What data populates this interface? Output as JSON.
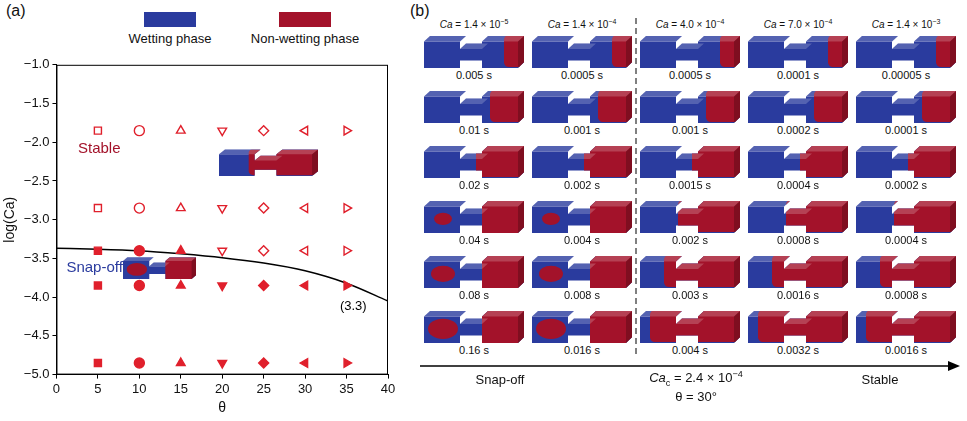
{
  "chart_data": {
    "type": "scatter",
    "panel_label": "(a)",
    "x_label": "θ",
    "y_label": "log(Ca)",
    "xlim": [
      0,
      40
    ],
    "xticks": [
      0,
      5,
      10,
      15,
      20,
      25,
      30,
      35,
      40
    ],
    "ylim": [
      -5,
      -1
    ],
    "yticks": [
      {
        "value": -5,
        "label": "−5.0"
      },
      {
        "value": -4.5,
        "label": "−4.5"
      },
      {
        "value": -4,
        "label": "−4.0"
      },
      {
        "value": -3.5,
        "label": "−3.5"
      },
      {
        "value": -3,
        "label": "−3.0"
      },
      {
        "value": -2.5,
        "label": "−2.5"
      },
      {
        "value": -2,
        "label": "−2.0"
      },
      {
        "value": -1.5,
        "label": "−1.5"
      },
      {
        "value": -1,
        "label": "−1.0"
      }
    ],
    "grid": false,
    "phases": [
      {
        "name": "Wetting phase",
        "color": "#2a3b9e"
      },
      {
        "name": "Non-wetting phase",
        "color": "#a3122a"
      }
    ],
    "annotations": [
      {
        "text": "Stable",
        "color": "#a3122a"
      },
      {
        "text": "Snap-off",
        "color": "#2a3b9e"
      },
      {
        "text": "(3.3)",
        "color": "#000000"
      }
    ],
    "series": [
      {
        "marker": "square-open",
        "color": "#e0202c",
        "x": [
          5,
          5
        ],
        "values": [
          -1.85,
          -2.85
        ]
      },
      {
        "marker": "square",
        "color": "#e0202c",
        "x": [
          5,
          5,
          5
        ],
        "values": [
          -3.4,
          -3.85,
          -4.85
        ]
      },
      {
        "marker": "circle-open",
        "color": "#e0202c",
        "x": [
          10,
          10
        ],
        "values": [
          -1.85,
          -2.85
        ]
      },
      {
        "marker": "circle",
        "color": "#e0202c",
        "x": [
          10,
          10,
          10
        ],
        "values": [
          -3.4,
          -3.85,
          -4.85
        ]
      },
      {
        "marker": "triangle-up-open",
        "color": "#e0202c",
        "x": [
          15,
          15
        ],
        "values": [
          -1.85,
          -2.85
        ]
      },
      {
        "marker": "triangle-up",
        "color": "#e0202c",
        "x": [
          15,
          15,
          15
        ],
        "values": [
          -3.4,
          -3.85,
          -4.85
        ]
      },
      {
        "marker": "triangle-down-open",
        "color": "#e0202c",
        "x": [
          20,
          20,
          20
        ],
        "values": [
          -1.85,
          -2.85,
          -3.4
        ]
      },
      {
        "marker": "triangle-down",
        "color": "#e0202c",
        "x": [
          20,
          20
        ],
        "values": [
          -3.85,
          -4.85
        ]
      },
      {
        "marker": "diamond-open",
        "color": "#e0202c",
        "x": [
          25,
          25,
          25
        ],
        "values": [
          -1.85,
          -2.85,
          -3.4
        ]
      },
      {
        "marker": "diamond",
        "color": "#e0202c",
        "x": [
          25,
          25
        ],
        "values": [
          -3.85,
          -4.85
        ]
      },
      {
        "marker": "triangle-left-open",
        "color": "#e0202c",
        "x": [
          30,
          30,
          30
        ],
        "values": [
          -1.85,
          -2.85,
          -3.4
        ]
      },
      {
        "marker": "triangle-left",
        "color": "#e0202c",
        "x": [
          30,
          30
        ],
        "values": [
          -3.85,
          -4.85
        ]
      },
      {
        "marker": "triangle-right-open",
        "color": "#e0202c",
        "x": [
          35,
          35,
          35
        ],
        "values": [
          -1.85,
          -2.85,
          -3.4
        ]
      },
      {
        "marker": "triangle-right",
        "color": "#e0202c",
        "x": [
          35,
          35
        ],
        "values": [
          -3.85,
          -4.85
        ]
      },
      {
        "type": "line",
        "marker": "none",
        "line_style": "solid",
        "color": "#000000",
        "x": [
          0,
          5,
          10,
          15,
          20,
          25,
          30,
          35,
          40
        ],
        "values": [
          -3.37,
          -3.38,
          -3.4,
          -3.44,
          -3.49,
          -3.56,
          -3.66,
          -3.82,
          -4.05
        ]
      }
    ]
  },
  "panel_b": {
    "panel_label": "(b)",
    "columns": [
      {
        "header": {
          "italic": "Ca",
          "text": " = 1.4 × 10",
          "sup": "−5"
        },
        "regime": "Snap-off",
        "times": [
          "0.005 s",
          "0.01 s",
          "0.02 s",
          "0.04 s",
          "0.08 s",
          "0.16 s"
        ]
      },
      {
        "header": {
          "italic": "Ca",
          "text": " = 1.4 × 10",
          "sup": "−4"
        },
        "regime": "Snap-off",
        "times": [
          "0.0005 s",
          "0.001 s",
          "0.002 s",
          "0.004 s",
          "0.008 s",
          "0.016 s"
        ]
      },
      {
        "header": {
          "italic": "Ca",
          "text": " = 4.0 × 10",
          "sup": "−4"
        },
        "regime": "Stable",
        "times": [
          "0.0005 s",
          "0.001 s",
          "0.0015 s",
          "0.002 s",
          "0.003 s",
          "0.004 s"
        ]
      },
      {
        "header": {
          "italic": "Ca",
          "text": " = 7.0 × 10",
          "sup": "−4"
        },
        "regime": "Stable",
        "times": [
          "0.0001 s",
          "0.0002 s",
          "0.0004 s",
          "0.0008 s",
          "0.0016 s",
          "0.0032 s"
        ]
      },
      {
        "header": {
          "italic": "Ca",
          "text": " = 1.4 × 10",
          "sup": "−3"
        },
        "regime": "Stable",
        "times": [
          "0.00005 s",
          "0.0001 s",
          "0.0002 s",
          "0.0004 s",
          "0.0008 s",
          "0.0016 s"
        ]
      }
    ],
    "bottom": {
      "left": "Snap-off",
      "right": "Stable",
      "critical": {
        "italic": "Ca",
        "sub": "c",
        "text": " = 2.4 × 10",
        "sup": "−4"
      },
      "angle": "θ = 30°"
    }
  }
}
